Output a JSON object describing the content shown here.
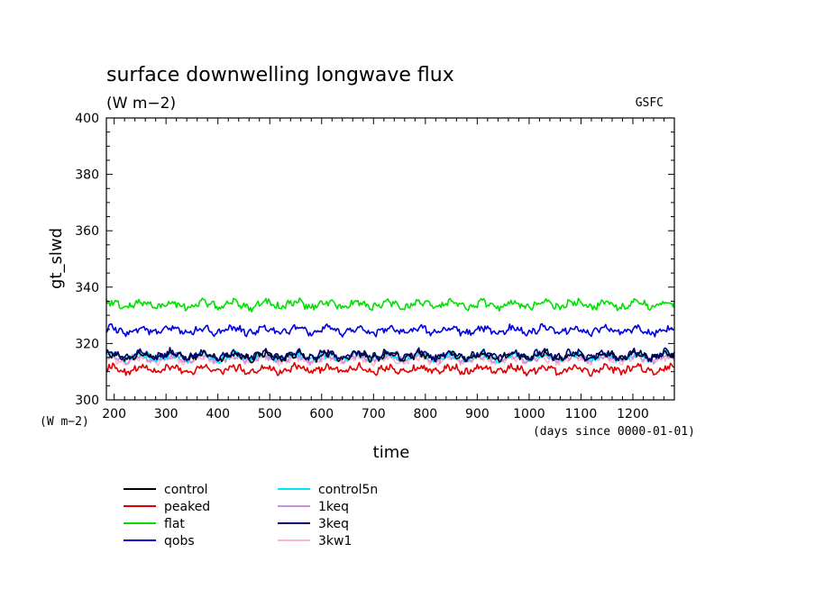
{
  "chart_data": {
    "type": "line",
    "title": "surface downwelling longwave flux",
    "subtitle": "(W m−2)",
    "source_label": "GSFC",
    "ylabel": "gt_slwd",
    "xlabel": "time",
    "y_unit_label": "(W m−2)",
    "x_unit_label": "(days since 0000-01-01)",
    "xlim": [
      185,
      1280
    ],
    "ylim": [
      300,
      400
    ],
    "x_ticks": [
      200,
      300,
      400,
      500,
      600,
      700,
      800,
      900,
      1000,
      1100,
      1200
    ],
    "x_tick_labels": [
      "200",
      "300",
      "400",
      "500",
      "600",
      "700",
      "800",
      "900",
      "1000",
      "1100",
      "1200"
    ],
    "y_ticks": [
      300,
      320,
      340,
      360,
      380,
      400
    ],
    "y_tick_labels": [
      "300",
      "320",
      "340",
      "360",
      "380",
      "400"
    ],
    "grid": false,
    "legend_placement": "below",
    "series": [
      {
        "name": "control",
        "color": "#000000",
        "mean": 315.5,
        "amplitude": 1.6
      },
      {
        "name": "peaked",
        "color": "#e00000",
        "mean": 310.8,
        "amplitude": 1.6
      },
      {
        "name": "flat",
        "color": "#00e000",
        "mean": 333.8,
        "amplitude": 1.7
      },
      {
        "name": "qobs",
        "color": "#0000e0",
        "mean": 324.6,
        "amplitude": 1.6
      },
      {
        "name": "control5n",
        "color": "#00e8ff",
        "mean": 315.3,
        "amplitude": 1.6
      },
      {
        "name": "1keq",
        "color": "#c890e0",
        "mean": 314.8,
        "amplitude": 1.5
      },
      {
        "name": "3keq",
        "color": "#000070",
        "mean": 316.0,
        "amplitude": 1.7
      },
      {
        "name": "3kw1",
        "color": "#ffb8c8",
        "mean": 314.2,
        "amplitude": 1.5
      }
    ]
  }
}
